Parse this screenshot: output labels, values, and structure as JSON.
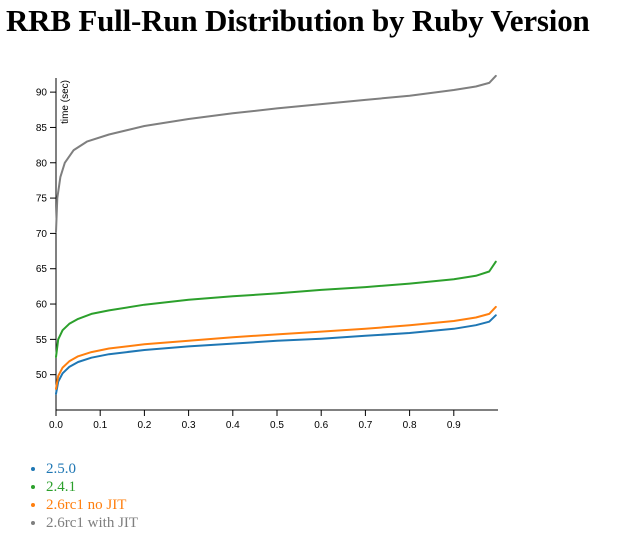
{
  "page": {
    "title": "RRB Full-Run Distribution by Ruby Version"
  },
  "chart_data": {
    "type": "line",
    "title": "RRB Full-Run Distribution by Ruby Version",
    "xlabel": "",
    "ylabel": "time (sec)",
    "xlim": [
      0,
      1
    ],
    "ylim": [
      45,
      92
    ],
    "x_ticks": [
      "0.0",
      "0.1",
      "0.2",
      "0.3",
      "0.4",
      "0.5",
      "0.6",
      "0.7",
      "0.8",
      "0.9"
    ],
    "y_ticks": [
      "50",
      "55",
      "60",
      "65",
      "70",
      "75",
      "80",
      "85",
      "90"
    ],
    "grid": false,
    "legend_position": "bottom-left",
    "series": [
      {
        "name": "2.5.0",
        "color": "#1f77b4",
        "points": [
          [
            0,
            47.3
          ],
          [
            0.005,
            49.0
          ],
          [
            0.015,
            50.2
          ],
          [
            0.03,
            51.1
          ],
          [
            0.05,
            51.8
          ],
          [
            0.08,
            52.4
          ],
          [
            0.12,
            52.9
          ],
          [
            0.2,
            53.5
          ],
          [
            0.3,
            54.0
          ],
          [
            0.4,
            54.4
          ],
          [
            0.5,
            54.8
          ],
          [
            0.6,
            55.1
          ],
          [
            0.7,
            55.5
          ],
          [
            0.8,
            55.9
          ],
          [
            0.9,
            56.5
          ],
          [
            0.95,
            57.0
          ],
          [
            0.98,
            57.5
          ],
          [
            0.995,
            58.4
          ]
        ]
      },
      {
        "name": "2.4.1",
        "color": "#2ca02c",
        "points": [
          [
            0,
            52.5
          ],
          [
            0.005,
            55.0
          ],
          [
            0.015,
            56.3
          ],
          [
            0.03,
            57.2
          ],
          [
            0.05,
            57.9
          ],
          [
            0.08,
            58.6
          ],
          [
            0.12,
            59.1
          ],
          [
            0.2,
            59.9
          ],
          [
            0.3,
            60.6
          ],
          [
            0.4,
            61.1
          ],
          [
            0.5,
            61.5
          ],
          [
            0.6,
            62.0
          ],
          [
            0.7,
            62.4
          ],
          [
            0.8,
            62.9
          ],
          [
            0.9,
            63.5
          ],
          [
            0.95,
            64.0
          ],
          [
            0.98,
            64.6
          ],
          [
            0.995,
            66.0
          ]
        ]
      },
      {
        "name": "2.6rc1 no JIT",
        "color": "#ff7f0e",
        "points": [
          [
            0,
            48.0
          ],
          [
            0.005,
            49.8
          ],
          [
            0.015,
            51.0
          ],
          [
            0.03,
            51.9
          ],
          [
            0.05,
            52.6
          ],
          [
            0.08,
            53.2
          ],
          [
            0.12,
            53.7
          ],
          [
            0.2,
            54.3
          ],
          [
            0.3,
            54.8
          ],
          [
            0.4,
            55.3
          ],
          [
            0.5,
            55.7
          ],
          [
            0.6,
            56.1
          ],
          [
            0.7,
            56.5
          ],
          [
            0.8,
            57.0
          ],
          [
            0.9,
            57.6
          ],
          [
            0.95,
            58.1
          ],
          [
            0.98,
            58.6
          ],
          [
            0.995,
            59.6
          ]
        ]
      },
      {
        "name": "2.6rc1 with JIT",
        "color": "#7f7f7f",
        "points": [
          [
            0,
            70.2
          ],
          [
            0.003,
            75.0
          ],
          [
            0.01,
            78.0
          ],
          [
            0.02,
            80.0
          ],
          [
            0.04,
            81.8
          ],
          [
            0.07,
            83.0
          ],
          [
            0.12,
            84.0
          ],
          [
            0.2,
            85.2
          ],
          [
            0.3,
            86.2
          ],
          [
            0.4,
            87.0
          ],
          [
            0.5,
            87.7
          ],
          [
            0.6,
            88.3
          ],
          [
            0.7,
            88.9
          ],
          [
            0.8,
            89.5
          ],
          [
            0.9,
            90.3
          ],
          [
            0.95,
            90.8
          ],
          [
            0.98,
            91.3
          ],
          [
            0.995,
            92.3
          ]
        ]
      }
    ]
  }
}
